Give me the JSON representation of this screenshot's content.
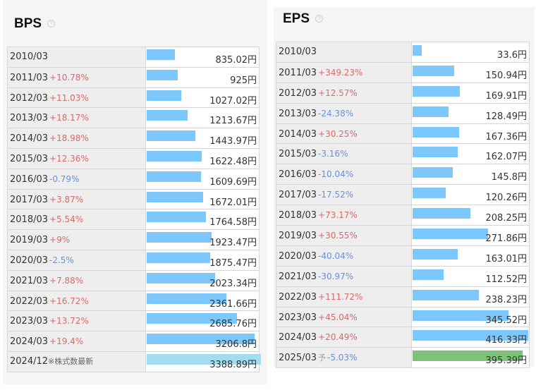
{
  "chart_data": [
    {
      "type": "bar",
      "title": "BPS",
      "unit": "円",
      "max": 3388.89,
      "rows": [
        {
          "period": "2010/03",
          "change": "",
          "value": 835.02,
          "label": "835.02円"
        },
        {
          "period": "2011/03",
          "change": "+10.78%",
          "value": 925,
          "label": "925円"
        },
        {
          "period": "2012/03",
          "change": "+11.03%",
          "value": 1027.02,
          "label": "1027.02円"
        },
        {
          "period": "2013/03",
          "change": "+18.17%",
          "value": 1213.67,
          "label": "1213.67円"
        },
        {
          "period": "2014/03",
          "change": "+18.98%",
          "value": 1443.97,
          "label": "1443.97円"
        },
        {
          "period": "2015/03",
          "change": "+12.36%",
          "value": 1622.48,
          "label": "1622.48円"
        },
        {
          "period": "2016/03",
          "change": "-0.79%",
          "value": 1609.69,
          "label": "1609.69円"
        },
        {
          "period": "2017/03",
          "change": "+3.87%",
          "value": 1672.01,
          "label": "1672.01円"
        },
        {
          "period": "2018/03",
          "change": "+5.54%",
          "value": 1764.58,
          "label": "1764.58円"
        },
        {
          "period": "2019/03",
          "change": "+9%",
          "value": 1923.47,
          "label": "1923.47円"
        },
        {
          "period": "2020/03",
          "change": "-2.5%",
          "value": 1875.47,
          "label": "1875.47円"
        },
        {
          "period": "2021/03",
          "change": "+7.88%",
          "value": 2023.34,
          "label": "2023.34円"
        },
        {
          "period": "2022/03",
          "change": "+16.72%",
          "value": 2361.66,
          "label": "2361.66円"
        },
        {
          "period": "2023/03",
          "change": "+13.72%",
          "value": 2685.76,
          "label": "2685.76円"
        },
        {
          "period": "2024/03",
          "change": "+19.4%",
          "value": 3206.8,
          "label": "3206.8円"
        },
        {
          "period": "2024/12",
          "change": "",
          "note": "※株式数最新",
          "value": 3388.89,
          "label": "3388.89円",
          "latest": true
        }
      ]
    },
    {
      "type": "bar",
      "title": "EPS",
      "unit": "円",
      "max": 416.33,
      "rows": [
        {
          "period": "2010/03",
          "change": "",
          "value": 33.6,
          "label": "33.6円"
        },
        {
          "period": "2011/03",
          "change": "+349.23%",
          "value": 150.94,
          "label": "150.94円"
        },
        {
          "period": "2012/03",
          "change": "+12.57%",
          "value": 169.91,
          "label": "169.91円"
        },
        {
          "period": "2013/03",
          "change": "-24.38%",
          "value": 128.49,
          "label": "128.49円"
        },
        {
          "period": "2014/03",
          "change": "+30.25%",
          "value": 167.36,
          "label": "167.36円"
        },
        {
          "period": "2015/03",
          "change": "-3.16%",
          "value": 162.07,
          "label": "162.07円"
        },
        {
          "period": "2016/03",
          "change": "-10.04%",
          "value": 145.8,
          "label": "145.8円"
        },
        {
          "period": "2017/03",
          "change": "-17.52%",
          "value": 120.26,
          "label": "120.26円"
        },
        {
          "period": "2018/03",
          "change": "+73.17%",
          "value": 208.25,
          "label": "208.25円"
        },
        {
          "period": "2019/03",
          "change": "+30.55%",
          "value": 271.86,
          "label": "271.86円"
        },
        {
          "period": "2020/03",
          "change": "-40.04%",
          "value": 163.01,
          "label": "163.01円"
        },
        {
          "period": "2021/03",
          "change": "-30.97%",
          "value": 112.52,
          "label": "112.52円"
        },
        {
          "period": "2022/03",
          "change": "+111.72%",
          "value": 238.23,
          "label": "238.23円"
        },
        {
          "period": "2023/03",
          "change": "+45.04%",
          "value": 345.52,
          "label": "345.52円"
        },
        {
          "period": "2024/03",
          "change": "+20.49%",
          "value": 416.33,
          "label": "416.33円"
        },
        {
          "period": "2025/03",
          "forecast_mark": "予",
          "change": "-5.03%",
          "value": 395.39,
          "label": "395.39円",
          "forecast": true
        }
      ]
    }
  ],
  "help_glyph": "?",
  "colors": {
    "bar": "#7cc7fb",
    "bar_latest": "#a2dcef",
    "bar_forecast": "#7ec27a",
    "pos": "#d86a6a",
    "neg": "#6a8fd8"
  }
}
